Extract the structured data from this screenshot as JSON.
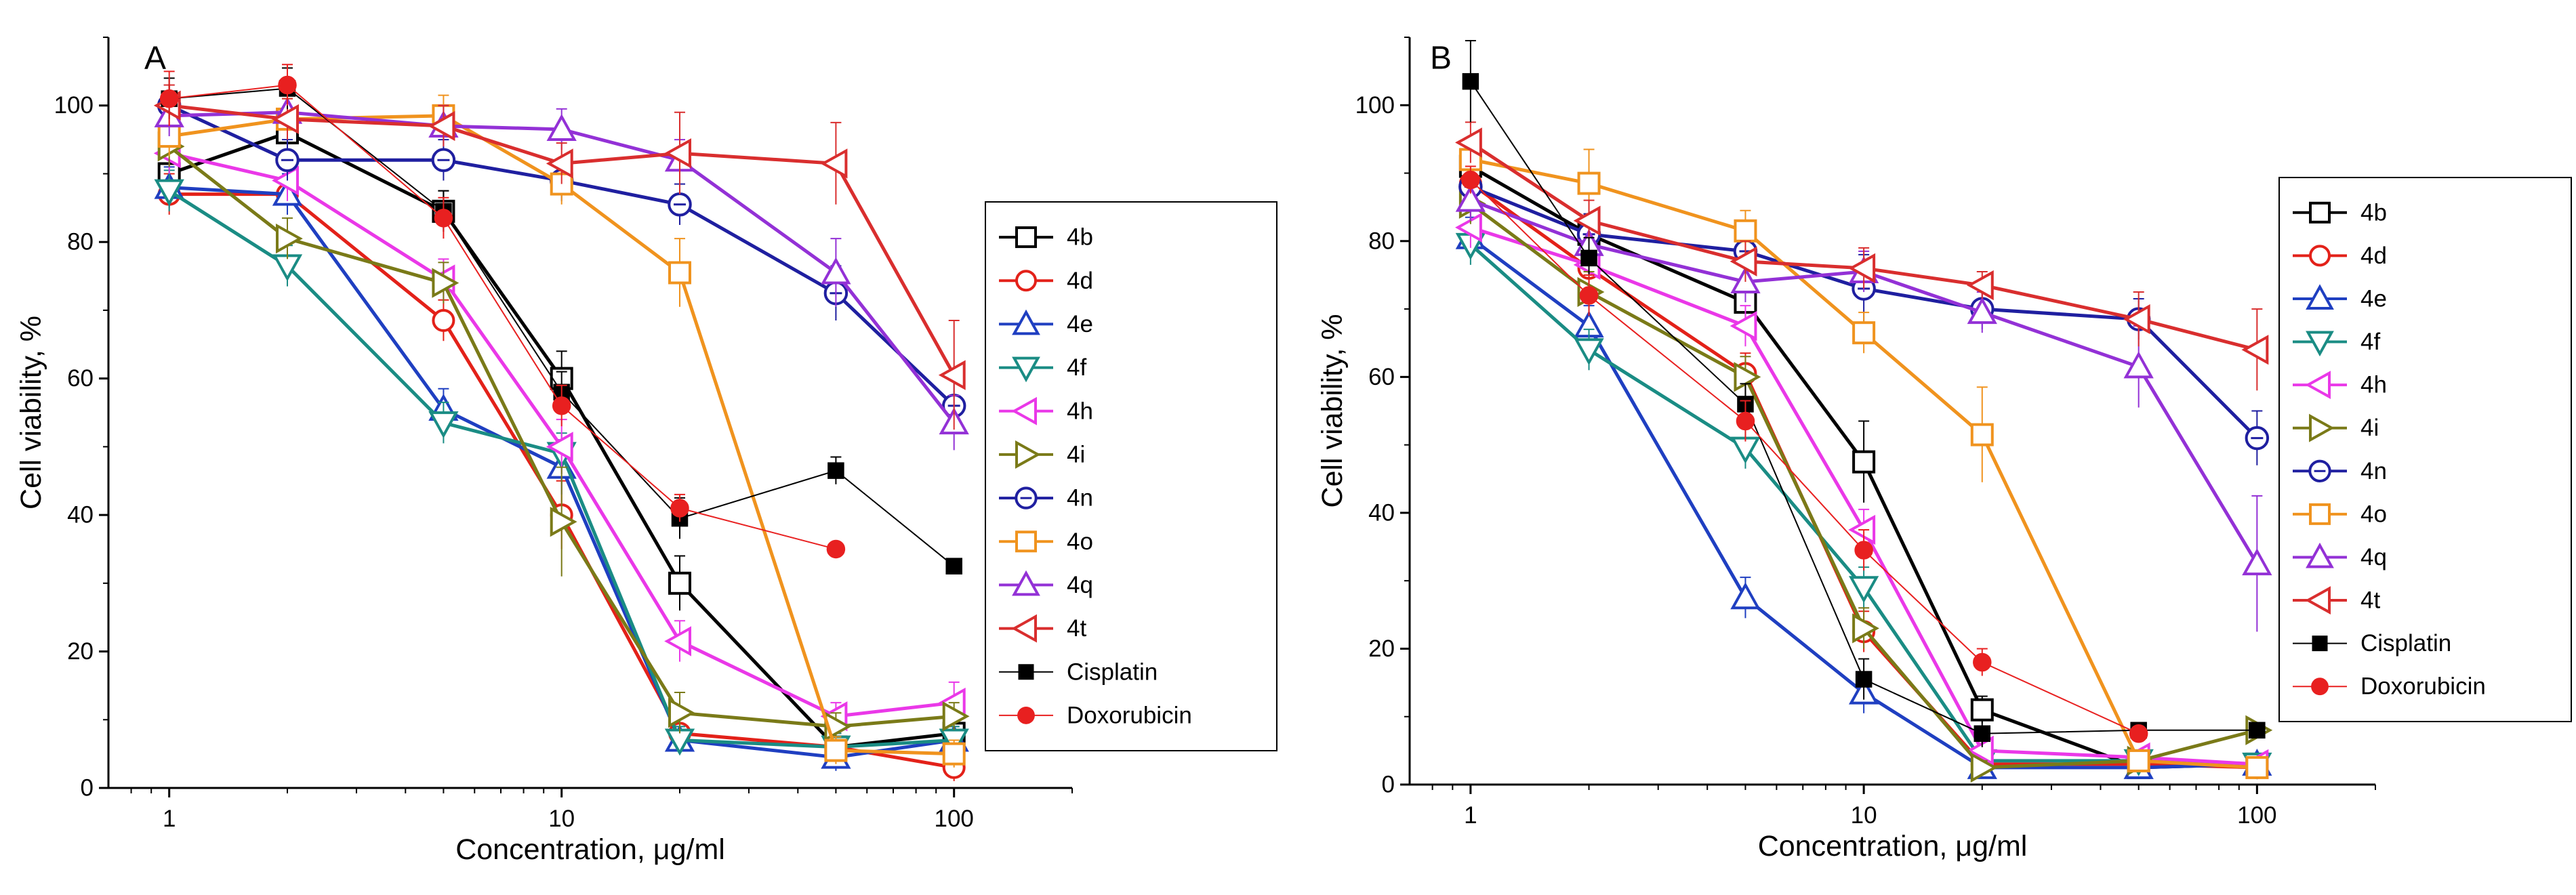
{
  "chart_data": [
    {
      "type": "line",
      "panel_label": "A",
      "title": "",
      "xlabel": "Concentration, μg/ml",
      "ylabel": "Cell viability, %",
      "xscale": "log",
      "xlim": [
        0.7,
        200
      ],
      "ylim": [
        0,
        110
      ],
      "x_ticks": [
        1,
        10,
        100
      ],
      "x_tick_labels": [
        "1",
        "10",
        "100"
      ],
      "y_ticks": [
        0,
        20,
        40,
        60,
        80,
        100
      ],
      "y_tick_labels": [
        "0",
        "20",
        "40",
        "60",
        "80",
        "100"
      ],
      "grid": false,
      "legend_position": "right",
      "x": [
        1,
        2,
        5,
        10,
        20,
        50,
        100
      ],
      "series": [
        {
          "name": "4b",
          "marker": "square",
          "color": "#000000",
          "values": [
            90,
            96,
            84.5,
            60,
            30,
            6,
            8
          ],
          "errors": [
            3,
            3,
            3,
            4,
            4,
            2,
            2
          ]
        },
        {
          "name": "4d",
          "marker": "circle",
          "color": "#e32119",
          "values": [
            87,
            87,
            68.5,
            40,
            8,
            6,
            3
          ],
          "errors": [
            3,
            3,
            3,
            5,
            3,
            2,
            2
          ]
        },
        {
          "name": "4e",
          "marker": "triangle-up",
          "color": "#1f3fc1",
          "values": [
            88,
            87,
            55.5,
            47,
            7,
            4.5,
            7
          ],
          "errors": [
            3,
            3,
            3,
            4,
            2,
            2,
            2
          ]
        },
        {
          "name": "4f",
          "marker": "triangle-down",
          "color": "#1a8c84",
          "values": [
            87.5,
            76.5,
            53.5,
            49,
            7,
            6,
            7
          ],
          "errors": [
            3,
            3,
            3,
            3,
            2,
            2,
            2
          ]
        },
        {
          "name": "4h",
          "marker": "triangle-left",
          "color": "#ea38e8",
          "values": [
            93,
            89,
            74.5,
            50,
            21.5,
            10.5,
            12.5
          ],
          "errors": [
            3,
            3,
            3,
            4,
            3,
            2,
            3
          ]
        },
        {
          "name": "4i",
          "marker": "triangle-right",
          "color": "#7a7a18",
          "values": [
            94,
            80.5,
            74,
            39,
            11,
            9,
            10.5
          ],
          "errors": [
            3,
            3,
            3,
            8,
            3,
            2,
            2
          ]
        },
        {
          "name": "4n",
          "marker": "hexagon",
          "color": "#1f1fa0",
          "values": [
            100,
            92,
            92,
            89,
            85.5,
            72.5,
            56
          ],
          "errors": [
            3,
            3,
            3,
            3,
            3,
            4,
            4
          ]
        },
        {
          "name": "4o",
          "marker": "square",
          "color": "#f0931e",
          "values": [
            95.5,
            98,
            98.5,
            88.5,
            75.5,
            5.5,
            5
          ],
          "errors": [
            3,
            3,
            3,
            3,
            5,
            2,
            2
          ]
        },
        {
          "name": "4q",
          "marker": "triangle-up",
          "color": "#9331d6",
          "values": [
            98.5,
            99,
            97,
            96.5,
            92,
            75.5,
            53.5
          ],
          "errors": [
            3,
            3,
            3,
            3,
            3,
            5,
            4
          ]
        },
        {
          "name": "4t",
          "marker": "triangle-left",
          "color": "#d92e2e",
          "values": [
            100,
            98,
            97,
            91.5,
            93,
            91.5,
            60.5
          ],
          "errors": [
            3,
            3,
            3,
            3,
            6,
            6,
            8
          ]
        },
        {
          "name": "Cisplatin",
          "marker": "filled-square",
          "color": "#000000",
          "values": [
            101,
            102.5,
            84.5,
            58,
            39.5,
            46.5,
            32.5
          ],
          "errors": [
            3,
            3,
            3,
            3,
            3,
            2,
            0
          ]
        },
        {
          "name": "Doxorubicin",
          "marker": "filled-circle",
          "color": "#e82020",
          "values": [
            101,
            103,
            83.5,
            56,
            41,
            35,
            null
          ],
          "errors": [
            4,
            3,
            3,
            3,
            2,
            0,
            0
          ]
        }
      ]
    },
    {
      "type": "line",
      "panel_label": "B",
      "title": "",
      "xlabel": "Concentration, μg/ml",
      "ylabel": "Cell viability, %",
      "xscale": "log",
      "xlim": [
        0.7,
        200
      ],
      "ylim": [
        0,
        110
      ],
      "x_ticks": [
        1,
        10,
        100
      ],
      "x_tick_labels": [
        "1",
        "10",
        "100"
      ],
      "y_ticks": [
        0,
        20,
        40,
        60,
        80,
        100
      ],
      "y_tick_labels": [
        "0",
        "20",
        "40",
        "60",
        "80",
        "100"
      ],
      "grid": false,
      "legend_position": "right",
      "x": [
        1,
        2,
        5,
        10,
        20,
        50,
        100
      ],
      "series": [
        {
          "name": "4b",
          "marker": "square",
          "color": "#000000",
          "values": [
            91,
            81,
            71,
            47.5,
            11,
            2.5,
            3
          ],
          "errors": [
            3,
            3,
            3,
            6,
            2,
            1,
            1
          ]
        },
        {
          "name": "4d",
          "marker": "circle",
          "color": "#e32119",
          "values": [
            88.5,
            76,
            60.5,
            22.5,
            3,
            3,
            2.5
          ],
          "errors": [
            3,
            3,
            3,
            3,
            1,
            1,
            1
          ]
        },
        {
          "name": "4e",
          "marker": "triangle-up",
          "color": "#1f3fc1",
          "values": [
            80.5,
            67.5,
            27.5,
            13.5,
            2.5,
            2.5,
            3
          ],
          "errors": [
            3,
            3,
            3,
            3,
            1,
            1,
            1
          ]
        },
        {
          "name": "4f",
          "marker": "triangle-down",
          "color": "#1a8c84",
          "values": [
            79.5,
            64,
            49.5,
            29,
            3.5,
            3.5,
            3
          ],
          "errors": [
            3,
            3,
            3,
            3,
            1,
            1,
            1
          ]
        },
        {
          "name": "4h",
          "marker": "triangle-left",
          "color": "#ea38e8",
          "values": [
            82,
            76.5,
            67.5,
            37.5,
            5,
            4,
            3
          ],
          "errors": [
            3,
            3,
            3,
            3,
            1,
            1,
            1
          ]
        },
        {
          "name": "4i",
          "marker": "triangle-right",
          "color": "#7a7a18",
          "values": [
            85.5,
            72.5,
            60,
            23,
            2.5,
            3.5,
            8
          ],
          "errors": [
            3,
            3,
            3,
            3,
            1,
            1,
            1
          ]
        },
        {
          "name": "4n",
          "marker": "hexagon",
          "color": "#1f1fa0",
          "values": [
            88,
            81,
            78.5,
            73,
            70,
            68.5,
            51
          ],
          "errors": [
            3,
            3,
            3,
            5,
            3,
            3,
            4
          ]
        },
        {
          "name": "4o",
          "marker": "square",
          "color": "#f0931e",
          "values": [
            92,
            88.5,
            81.5,
            66.5,
            51.5,
            3.5,
            2.5
          ],
          "errors": [
            3,
            5,
            3,
            3,
            7,
            1,
            1
          ]
        },
        {
          "name": "4q",
          "marker": "triangle-up",
          "color": "#9331d6",
          "values": [
            86,
            79.5,
            74,
            75.5,
            69.5,
            61.5,
            32.5
          ],
          "errors": [
            3,
            3,
            3,
            3,
            3,
            6,
            10
          ]
        },
        {
          "name": "4t",
          "marker": "triangle-left",
          "color": "#d92e2e",
          "values": [
            94.5,
            83,
            77,
            76,
            73.5,
            68.5,
            64
          ],
          "errors": [
            3,
            3,
            3,
            3,
            2,
            4,
            6
          ]
        },
        {
          "name": "Cisplatin",
          "marker": "filled-square",
          "color": "#000000",
          "values": [
            103.5,
            77.5,
            56,
            15.5,
            7.5,
            8,
            8
          ],
          "errors": [
            6,
            3,
            3,
            3,
            2,
            1,
            1
          ]
        },
        {
          "name": "Doxorubicin",
          "marker": "filled-circle",
          "color": "#e82020",
          "values": [
            89,
            72,
            53.5,
            34.5,
            18,
            7.5,
            null
          ],
          "errors": [
            2,
            3,
            3,
            3,
            2,
            1,
            0
          ]
        }
      ]
    }
  ]
}
